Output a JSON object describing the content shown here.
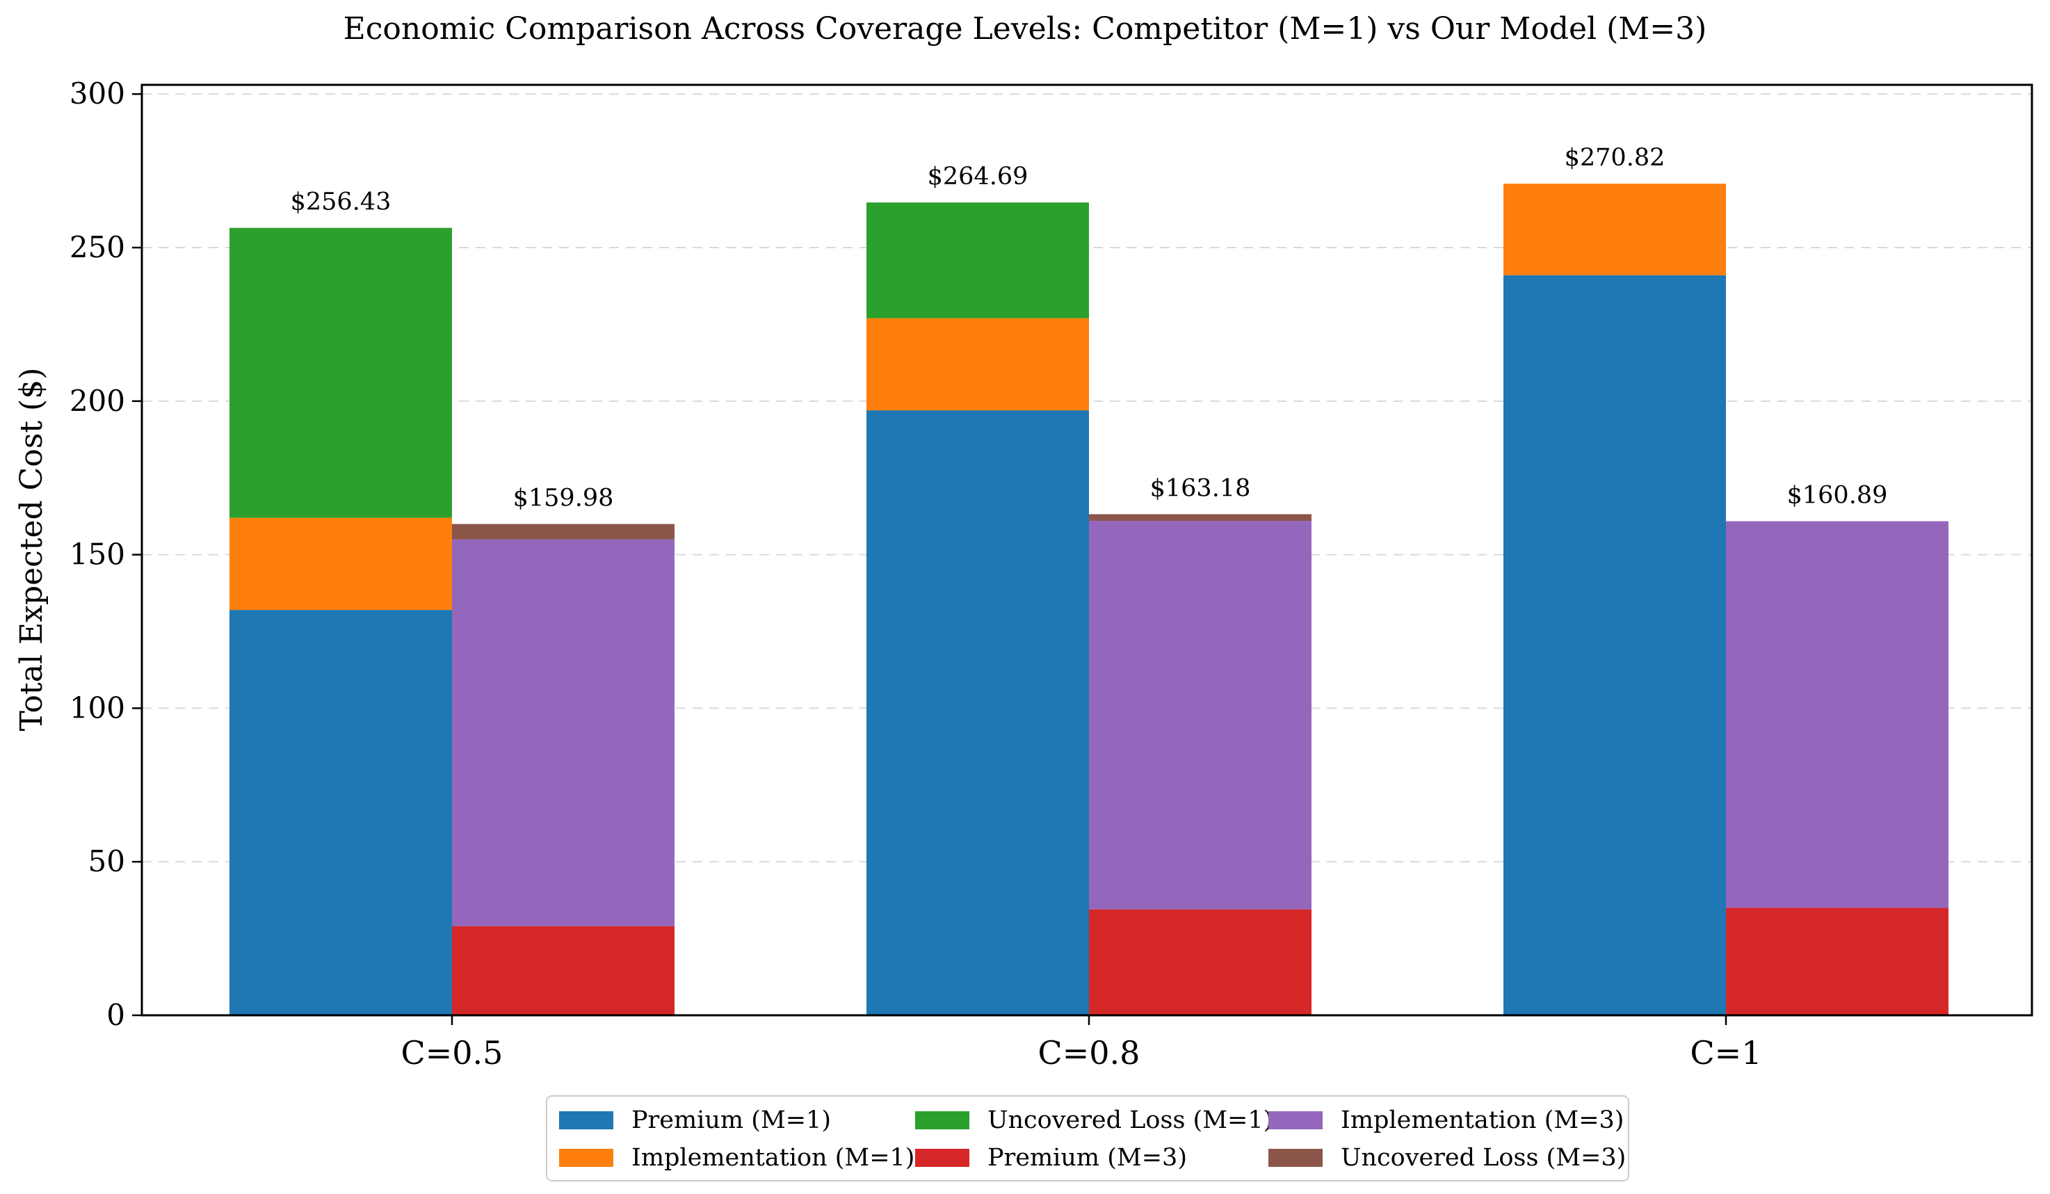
{
  "chart_data": {
    "type": "bar",
    "stacked": true,
    "grouped": true,
    "title": "Economic Comparison Across Coverage Levels: Competitor (M=1) vs Our Model (M=3)",
    "xlabel": "",
    "ylabel": "Total Expected Cost ($)",
    "ylim": [
      0,
      300
    ],
    "yticks": [
      0,
      50,
      100,
      150,
      200,
      250,
      300
    ],
    "grid": "y-dashed",
    "legend_position": "bottom-center",
    "categories": [
      "C=0.5",
      "C=0.8",
      "C=1"
    ],
    "groups": [
      {
        "model": "M=1",
        "totals": [
          "$256.43",
          "$264.69",
          "$270.82"
        ],
        "series": [
          {
            "name": "Premium (M=1)",
            "color": "#1f77b4",
            "values": [
              132.0,
              197.0,
              241.0
            ]
          },
          {
            "name": "Implementation (M=1)",
            "color": "#ff7f0e",
            "values": [
              30.0,
              30.0,
              29.82
            ]
          },
          {
            "name": "Uncovered Loss (M=1)",
            "color": "#2ca02c",
            "values": [
              94.43,
              37.69,
              0
            ]
          }
        ]
      },
      {
        "model": "M=3",
        "totals": [
          "$159.98",
          "$163.18",
          "$160.89"
        ],
        "series": [
          {
            "name": "Premium (M=3)",
            "color": "#d62728",
            "values": [
              29.0,
              34.5,
              35.0
            ]
          },
          {
            "name": "Implementation (M=3)",
            "color": "#9467bd",
            "values": [
              126.0,
              126.5,
              125.89
            ]
          },
          {
            "name": "Uncovered Loss (M=3)",
            "color": "#8c564b",
            "values": [
              4.98,
              2.18,
              0
            ]
          }
        ]
      }
    ],
    "legend_order": [
      "Premium (M=1)",
      "Implementation (M=1)",
      "Uncovered Loss (M=1)",
      "Premium (M=3)",
      "Implementation (M=3)",
      "Uncovered Loss (M=3)"
    ]
  }
}
